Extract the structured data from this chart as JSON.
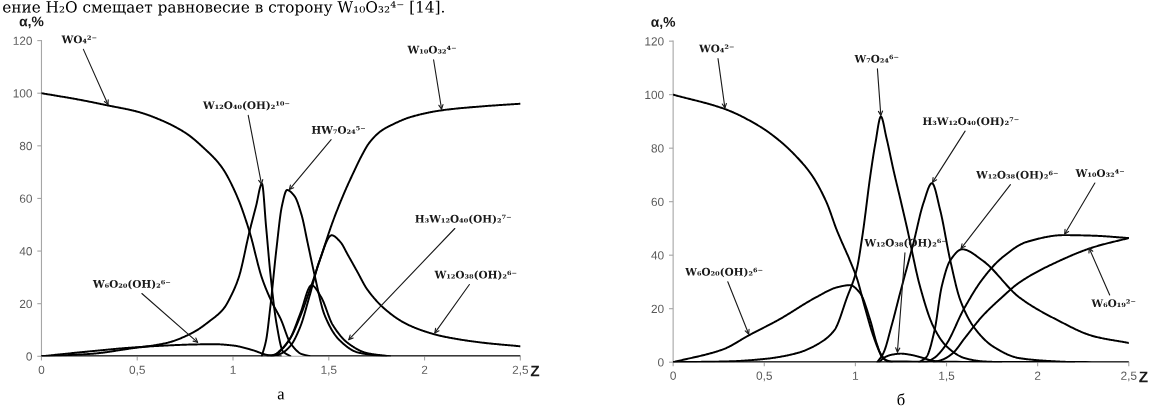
{
  "chart_data": [
    {
      "type": "line",
      "title": "а",
      "xlabel": "Z",
      "ylabel": "α,%",
      "xlim": [
        0,
        2.5
      ],
      "ylim": [
        0,
        120
      ],
      "xticks": [
        0,
        {
          "value": 0.5,
          "label": "0,5"
        },
        1,
        {
          "value": 1.5,
          "label": "1,5"
        },
        2,
        {
          "value": 2.5,
          "label": "2,5"
        }
      ],
      "yticks": [
        0,
        20,
        40,
        60,
        80,
        100,
        120
      ],
      "series": [
        {
          "color": "#000000",
          "x": [
            0,
            0.2,
            0.35,
            0.5,
            0.6,
            0.75,
            0.85,
            0.94,
            1.02,
            1.086,
            1.15,
            1.2,
            1.25,
            1.3,
            1.36,
            1.42,
            2.5
          ],
          "values": [
            100,
            97.5,
            95.3,
            93,
            90.5,
            85,
            79,
            72,
            61,
            47.4,
            30,
            21,
            14,
            5,
            0.8,
            0,
            0
          ]
        },
        {
          "color": "#000000",
          "x": [
            0,
            0.27,
            0.45,
            0.6,
            0.8,
            0.9,
            1.0,
            1.1,
            1.18,
            1.25
          ],
          "values": [
            0,
            2,
            3.2,
            3.9,
            4.5,
            4.6,
            4.1,
            2.4,
            0.5,
            0
          ]
        },
        {
          "color": "#000000",
          "x": [
            0,
            0.27,
            0.45,
            0.65,
            0.79,
            0.88,
            0.95,
            0.99,
            1.03,
            1.086,
            1.12,
            1.151,
            1.173,
            1.195,
            1.227,
            1.26,
            1.3
          ],
          "values": [
            0,
            1,
            2.8,
            5,
            9,
            13.5,
            18,
            23,
            30,
            47.4,
            57,
            65.6,
            49,
            31.5,
            12.5,
            2,
            0
          ]
        },
        {
          "color": "#000000",
          "x": [
            1.15,
            1.173,
            1.195,
            1.227,
            1.255,
            1.282,
            1.32,
            1.358,
            1.39,
            1.424,
            1.478,
            1.555,
            1.65,
            1.75,
            1.8
          ],
          "values": [
            0,
            6.2,
            18.9,
            41,
            57,
            63.2,
            61,
            53.7,
            43,
            31.5,
            15.7,
            6.2,
            1.5,
            0.3,
            0
          ]
        },
        {
          "color": "#000000",
          "x": [
            1.18,
            1.23,
            1.26,
            1.3,
            1.35,
            1.41,
            1.46,
            1.52,
            1.6,
            1.7,
            1.82
          ],
          "values": [
            0,
            1,
            3,
            7,
            16,
            27,
            22.5,
            12,
            5,
            1.2,
            0
          ]
        },
        {
          "color": "#000000",
          "x": [
            1.2,
            1.25,
            1.3,
            1.35,
            1.4,
            1.45,
            1.515,
            1.56,
            1.6,
            1.65,
            1.7,
            1.8,
            1.9,
            2.0,
            2.1,
            2.3,
            2.5
          ],
          "values": [
            0,
            1,
            4,
            11,
            23,
            36,
            46,
            43.5,
            38.5,
            32,
            25.5,
            17.5,
            12.5,
            9.5,
            7.5,
            5.2,
            3.8
          ]
        },
        {
          "color": "#000000",
          "x": [
            0,
            1.2,
            1.25,
            1.3,
            1.35,
            1.4,
            1.46,
            1.52,
            1.58,
            1.63,
            1.67,
            1.71,
            1.77,
            1.83,
            1.93,
            2.09,
            2.3,
            2.5
          ],
          "values": [
            0,
            0,
            2.5,
            7,
            15,
            25,
            38,
            51,
            62,
            70,
            76,
            81,
            85.5,
            88,
            91,
            93.5,
            95,
            96
          ]
        }
      ],
      "annotations": [
        "ение H₂O смещает равновесие в сторону W₁₀O₃₂⁴⁻ [14].",
        {
          "text": "WO₄²⁻",
          "x": 0.35,
          "y": 95.3
        },
        {
          "text": "W₁₂O₄₀(OH)₂¹⁰⁻",
          "x": 1.15,
          "y": 65
        },
        {
          "text": "HW₇O₂₄⁵⁻",
          "x": 1.29,
          "y": 63
        },
        {
          "text": "W₁₀O₃₂⁴⁻",
          "x": 2.09,
          "y": 93.5
        },
        {
          "text": "W₆O₂₀(OH)₂⁶⁻",
          "x": 0.82,
          "y": 5
        },
        {
          "text": "H₃W₁₂O₄₀(OH)₂⁷⁻",
          "x": 1.6,
          "y": 6
        },
        {
          "text": "W₁₂O₃₈(OH)₂⁶⁻",
          "x": 2.05,
          "y": 8.5
        }
      ]
    },
    {
      "type": "line",
      "title": "б",
      "xlabel": "Z",
      "ylabel": "α,%",
      "xlim": [
        0,
        2.5
      ],
      "ylim": [
        0,
        120
      ],
      "xticks": [
        0,
        {
          "value": 0.5,
          "label": "0,5"
        },
        1,
        {
          "value": 1.5,
          "label": "1,5"
        },
        2,
        {
          "value": 2.5,
          "label": "2,5"
        }
      ],
      "yticks": [
        0,
        20,
        40,
        60,
        80,
        100,
        120
      ],
      "series": [
        {
          "color": "#000000",
          "x": [
            0,
            0.285,
            0.476,
            0.58,
            0.66,
            0.76,
            0.84,
            0.9,
            0.97,
            1.01,
            1.05,
            1.1,
            1.14,
            1.18,
            2.5
          ],
          "values": [
            100,
            94.6,
            88.1,
            83,
            78,
            70,
            60,
            49,
            38,
            31,
            21,
            9.5,
            3,
            0.3,
            0
          ]
        },
        {
          "color": "#000000",
          "x": [
            0,
            0.274,
            0.417,
            0.58,
            0.783,
            0.9,
            0.97,
            1.026,
            1.081,
            1.117,
            1.15,
            1.2
          ],
          "values": [
            0,
            4.8,
            10.1,
            15.9,
            24.2,
            28,
            28.8,
            25.8,
            15.8,
            7,
            1.5,
            0
          ]
        },
        {
          "color": "#000000",
          "x": [
            0,
            0.3,
            0.5,
            0.68,
            0.8,
            0.885,
            0.953,
            1.007,
            1.04,
            1.081,
            1.11,
            1.14,
            1.17,
            1.209,
            1.25,
            1.282,
            1.355,
            1.428,
            1.502,
            1.6,
            1.7,
            1.8
          ],
          "values": [
            0,
            0.3,
            1.2,
            3.4,
            7,
            12,
            24,
            34.6,
            48,
            69.3,
            82,
            91.8,
            84,
            71.8,
            60,
            50.6,
            28.2,
            13.3,
            5.8,
            1.5,
            0.3,
            0
          ]
        },
        {
          "color": "#000000",
          "x": [
            1.13,
            1.16,
            1.2,
            1.25,
            1.3,
            1.36,
            1.42,
            1.49
          ],
          "values": [
            0,
            1.8,
            2.8,
            3.2,
            2.8,
            1.8,
            0.6,
            0
          ]
        },
        {
          "color": "#000000",
          "x": [
            1.12,
            1.153,
            1.2,
            1.245,
            1.318,
            1.373,
            1.42,
            1.465,
            1.52,
            1.575,
            1.648,
            1.757,
            1.9,
            2.1,
            2.2
          ],
          "values": [
            0,
            3.3,
            14,
            25.8,
            44.4,
            59.4,
            66.9,
            56.9,
            38.2,
            23.3,
            13.3,
            5.8,
            1.5,
            0.3,
            0
          ]
        },
        {
          "color": "#000000",
          "x": [
            1.35,
            1.39,
            1.434,
            1.474,
            1.52,
            1.586,
            1.698,
            1.9,
            2.104,
            2.307,
            2.5
          ],
          "values": [
            0,
            2,
            11.8,
            28.4,
            38,
            42.2,
            38,
            24.2,
            15.9,
            9.7,
            7.2
          ]
        },
        {
          "color": "#000000",
          "x": [
            0,
            1.38,
            1.43,
            1.494,
            1.596,
            1.698,
            1.8,
            1.942,
            2.145,
            2.3,
            2.5
          ],
          "values": [
            0,
            0,
            1.5,
            6.2,
            20,
            31.1,
            38.8,
            45,
            47.5,
            47.3,
            46.4
          ]
        },
        {
          "color": "#000000",
          "x": [
            1.43,
            1.48,
            1.535,
            1.6,
            1.698,
            1.8,
            1.9,
            2.104,
            2.307,
            2.5
          ],
          "values": [
            0,
            1,
            3.4,
            9,
            17.3,
            24,
            29.8,
            37.4,
            43,
            46.4
          ]
        }
      ],
      "annotations": [
        {
          "text": "WO₄²⁻",
          "x": 0.285,
          "y": 94.6
        },
        {
          "text": "W₇O₂₄⁶⁻",
          "x": 1.14,
          "y": 91.8
        },
        {
          "text": "H₃W₁₂O₄₀(OH)₂⁷⁻",
          "x": 1.42,
          "y": 66.9
        },
        {
          "text": "W₁₂O₃₈(OH)₂⁶⁻",
          "x": 1.576,
          "y": 42.2
        },
        {
          "text": "W₁₀O₃₂⁴⁻",
          "x": 2.145,
          "y": 47.5
        },
        {
          "text": "W₆O₁₉²⁻",
          "x": 2.28,
          "y": 43
        },
        {
          "text": "W₆O₂₀(OH)₂⁶⁻",
          "x": 0.417,
          "y": 10.1
        },
        {
          "text": "W₁₂O₃₈(OH)₂⁶⁻",
          "x": 1.23,
          "y": 3.3
        }
      ]
    }
  ]
}
